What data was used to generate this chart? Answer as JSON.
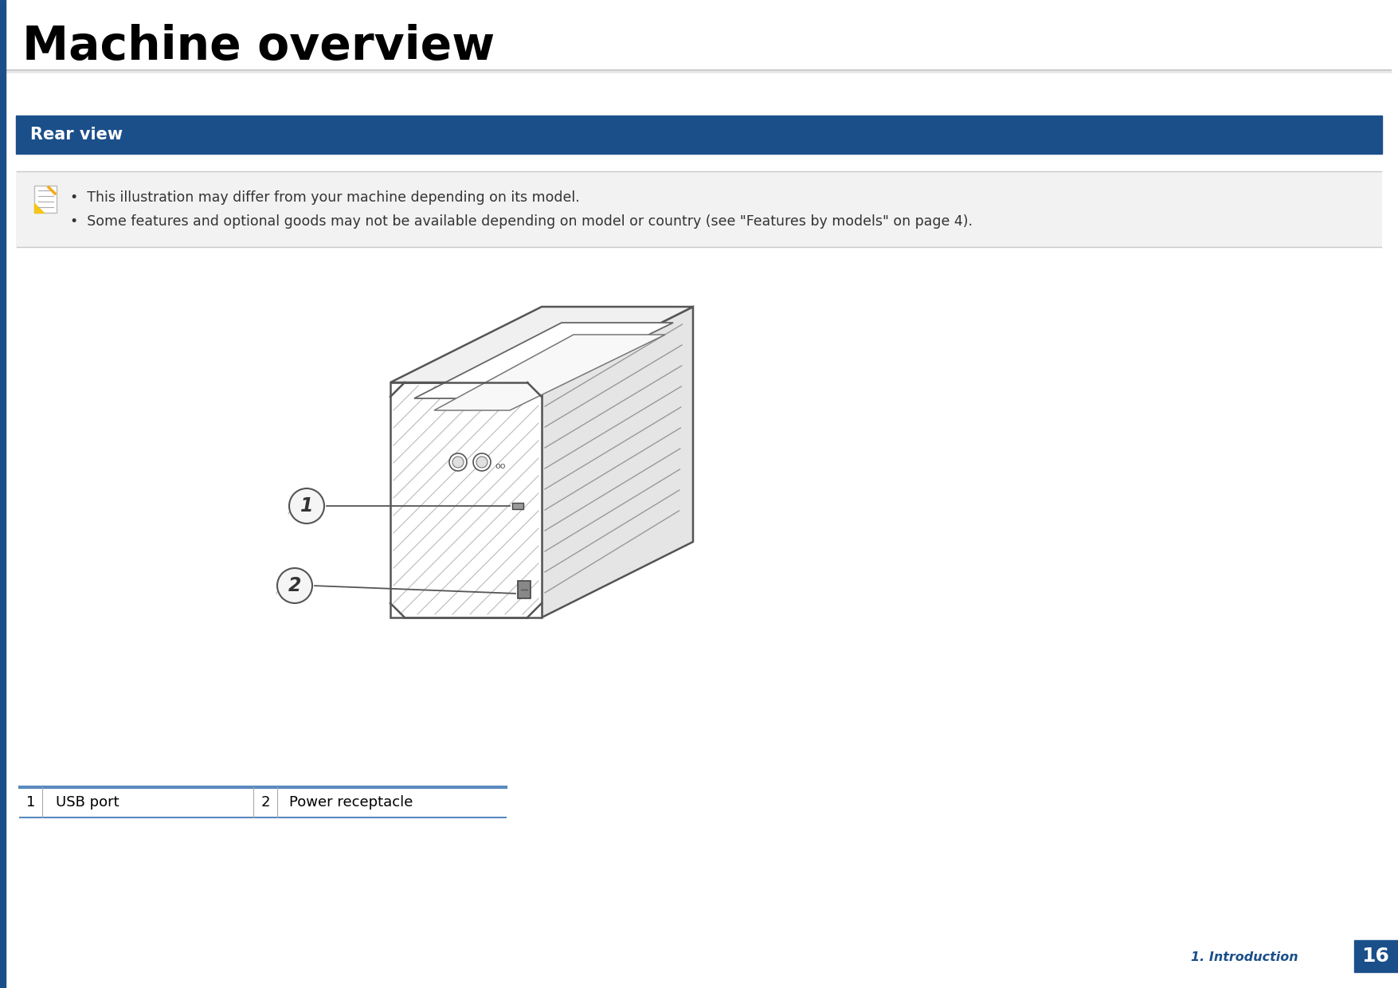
{
  "title": "Machine overview",
  "title_fontsize": 42,
  "title_color": "#000000",
  "section_title": "Rear view",
  "section_title_color": "#ffffff",
  "section_bg_color": "#1b4f8a",
  "note_line1": "This illustration may differ from your machine depending on its model.",
  "note_line2": "Some features and optional goods may not be available depending on model or country (see \"Features by models\" on page 4).",
  "note_bg_color": "#f2f2f2",
  "note_text_color": "#333333",
  "note_fontsize": 12.5,
  "table_row1_num": "1",
  "table_row1_text": "USB port",
  "table_row2_num": "2",
  "table_row2_text": "Power receptacle",
  "table_line_color": "#5b8abf",
  "table_text_color": "#000000",
  "table_fontsize": 13,
  "footer_text": "1. Introduction",
  "footer_page": "16",
  "footer_color": "#1b4f8a",
  "footer_bg_color": "#1b4f8a",
  "bg_color": "#ffffff",
  "left_bar_color": "#1b4f8a",
  "separator_color": "#b0b0b0",
  "printer_edge_color": "#555555",
  "printer_face_color": "#ffffff",
  "printer_right_color": "#e8e8e8",
  "printer_top_color": "#f0f0f0",
  "hatch_color": "#aaaaaa"
}
